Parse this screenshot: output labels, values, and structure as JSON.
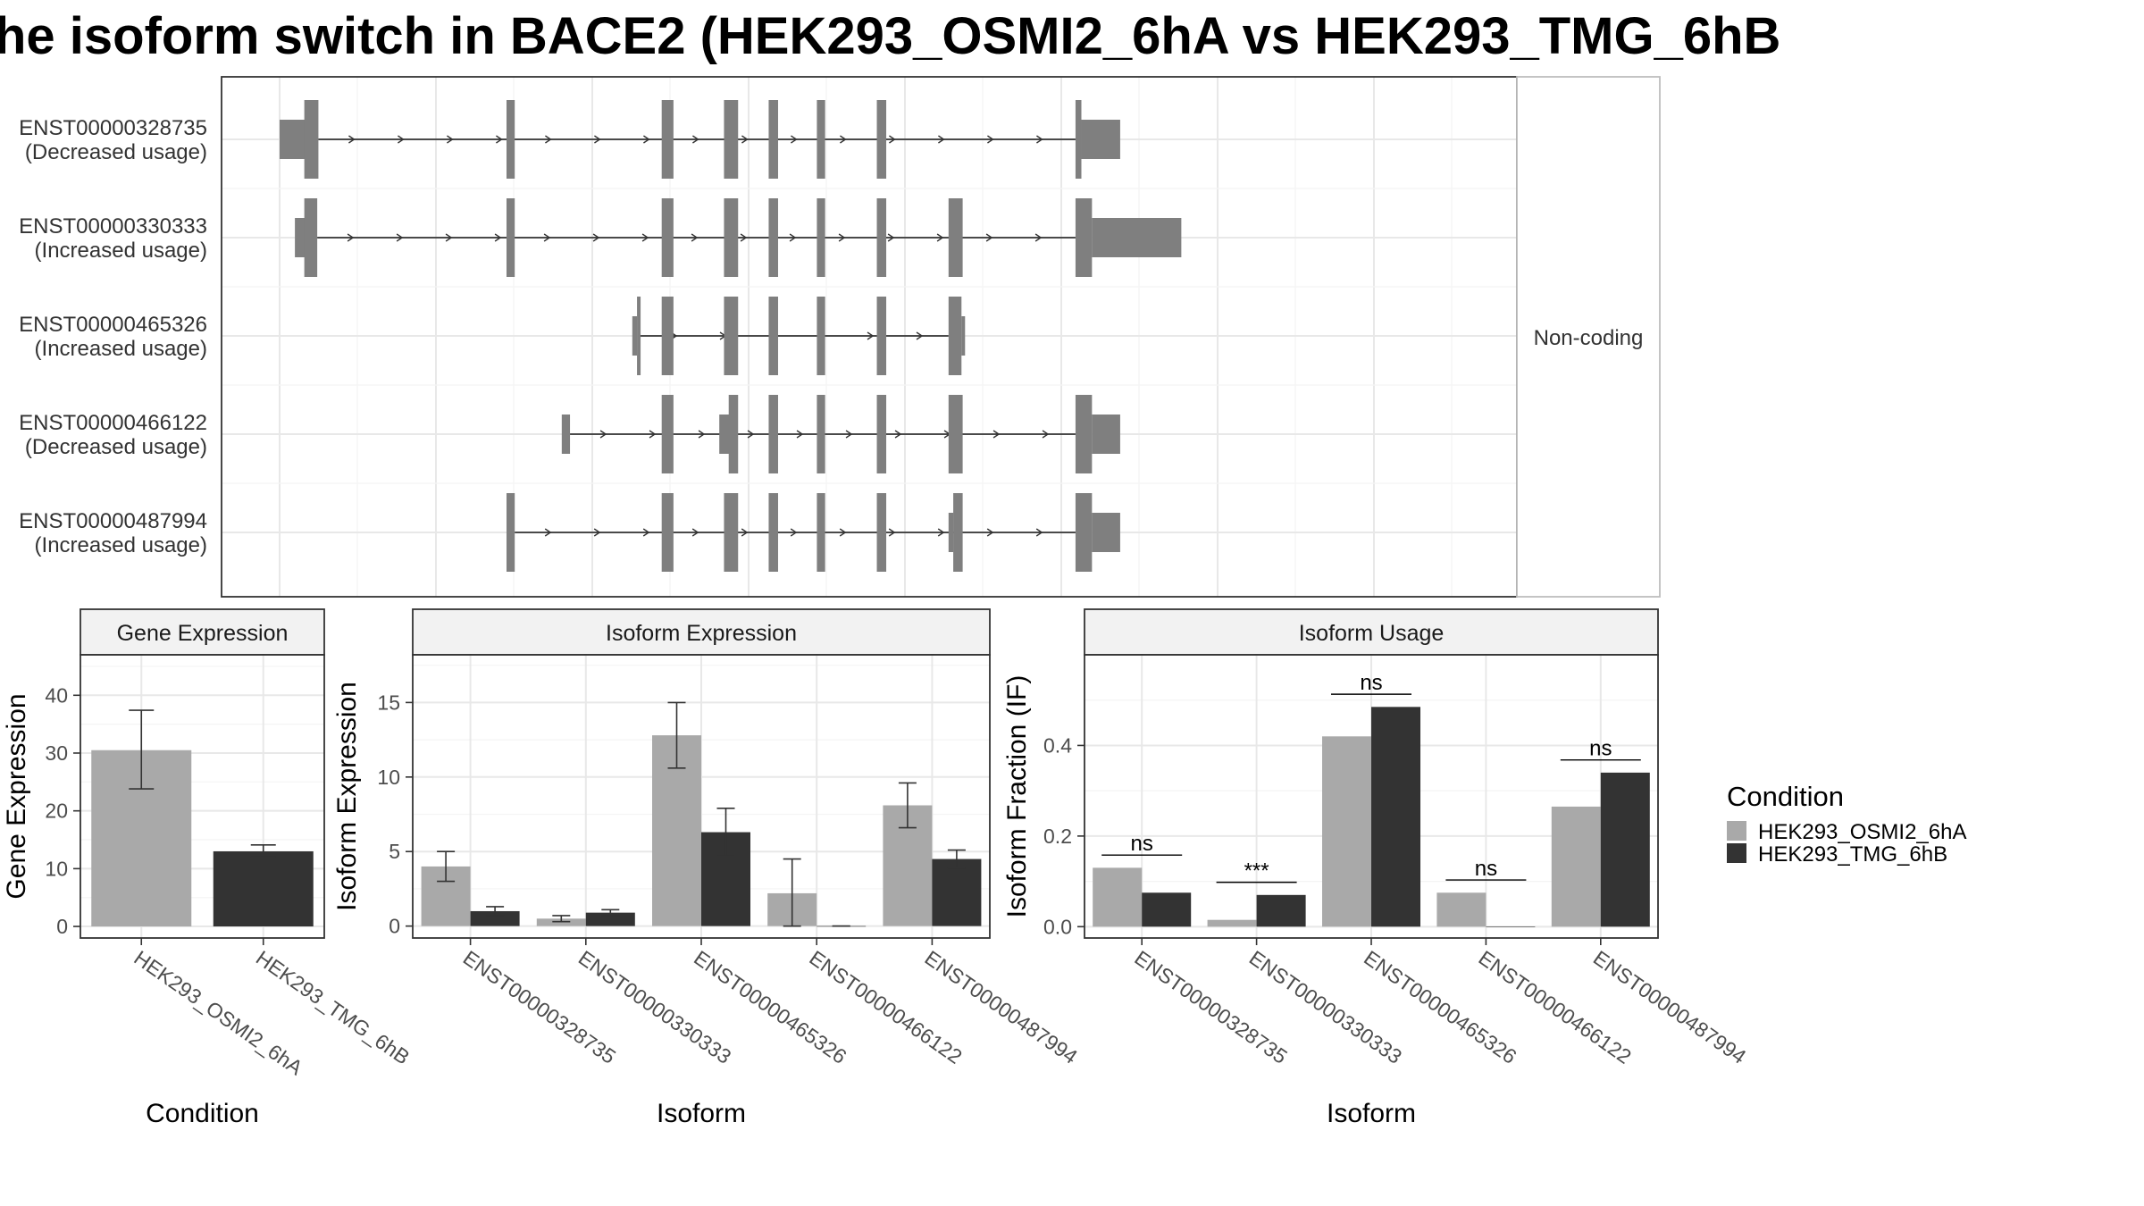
{
  "title": "he isoform switch in BACE2 (HEK293_OSMI2_6hA vs HEK293_TMG_6hB",
  "colors": {
    "cond_a": "#a9a9a9",
    "cond_b": "#333333",
    "exon": "#7f7f7f"
  },
  "transcripts": {
    "strip_label": "Non-coding",
    "coord_range": [
      0,
      100
    ],
    "items": [
      {
        "id": "ENST00000328735",
        "usage": "(Decreased usage)",
        "exons": [
          [
            0,
            3.0,
            "thin"
          ],
          [
            2.1,
            3.3,
            "thick"
          ],
          [
            19.3,
            20.0,
            "thick"
          ],
          [
            32.5,
            33.5,
            "thick"
          ],
          [
            37.8,
            39.0,
            "thick"
          ],
          [
            41.6,
            42.4,
            "thick"
          ],
          [
            45.7,
            46.4,
            "thick"
          ],
          [
            50.8,
            51.6,
            "thick"
          ],
          [
            67.7,
            68.2,
            "thick"
          ],
          [
            68.2,
            71.5,
            "thin"
          ]
        ],
        "intron": [
          3.3,
          67.7
        ]
      },
      {
        "id": "ENST00000330333",
        "usage": "(Increased usage)",
        "exons": [
          [
            1.3,
            2.2,
            "thin"
          ],
          [
            2.1,
            3.2,
            "thick"
          ],
          [
            19.3,
            20.0,
            "thick"
          ],
          [
            32.5,
            33.5,
            "thick"
          ],
          [
            37.8,
            39.0,
            "thick"
          ],
          [
            41.6,
            42.4,
            "thick"
          ],
          [
            45.7,
            46.4,
            "thick"
          ],
          [
            50.8,
            51.6,
            "thick"
          ],
          [
            56.9,
            58.1,
            "thick"
          ],
          [
            67.7,
            69.1,
            "thick"
          ],
          [
            69.1,
            76.7,
            "thin"
          ]
        ],
        "intron": [
          3.2,
          67.7
        ]
      },
      {
        "id": "ENST00000465326",
        "usage": "(Increased usage)",
        "exons": [
          [
            30.0,
            30.4,
            "thin"
          ],
          [
            30.4,
            30.7,
            "thick"
          ],
          [
            32.5,
            33.5,
            "thick"
          ],
          [
            37.8,
            39.0,
            "thick"
          ],
          [
            41.6,
            42.4,
            "thick"
          ],
          [
            45.7,
            46.4,
            "thick"
          ],
          [
            50.8,
            51.6,
            "thick"
          ],
          [
            56.9,
            58.0,
            "thick"
          ],
          [
            58.0,
            58.2,
            "thin"
          ]
        ],
        "intron": [
          30.7,
          56.9
        ]
      },
      {
        "id": "ENST00000466122",
        "usage": "(Decreased usage)",
        "exons": [
          [
            24.0,
            24.7,
            "thin"
          ],
          [
            32.5,
            33.5,
            "thick"
          ],
          [
            37.4,
            38.3,
            "thin"
          ],
          [
            38.2,
            39.0,
            "thick"
          ],
          [
            41.6,
            42.4,
            "thick"
          ],
          [
            45.7,
            46.4,
            "thick"
          ],
          [
            50.8,
            51.6,
            "thick"
          ],
          [
            56.9,
            58.1,
            "thick"
          ],
          [
            67.7,
            69.1,
            "thick"
          ],
          [
            69.1,
            71.5,
            "thin"
          ]
        ],
        "intron": [
          24.7,
          67.7
        ]
      },
      {
        "id": "ENST00000487994",
        "usage": "(Increased usage)",
        "exons": [
          [
            19.3,
            20.0,
            "thick"
          ],
          [
            32.5,
            33.5,
            "thick"
          ],
          [
            37.8,
            39.0,
            "thick"
          ],
          [
            41.6,
            42.4,
            "thick"
          ],
          [
            45.7,
            46.4,
            "thick"
          ],
          [
            50.8,
            51.6,
            "thick"
          ],
          [
            56.9,
            57.3,
            "thin"
          ],
          [
            57.3,
            58.1,
            "thick"
          ],
          [
            67.7,
            69.1,
            "thick"
          ],
          [
            69.1,
            71.5,
            "thin"
          ]
        ],
        "intron": [
          20.0,
          67.7
        ]
      }
    ]
  },
  "legend": {
    "title": "Condition",
    "items": [
      "HEK293_OSMI2_6hA",
      "HEK293_TMG_6hB"
    ]
  },
  "chart_data": [
    {
      "type": "bar",
      "strip": "Gene Expression",
      "xlabel": "Condition",
      "ylabel": "Gene Expression",
      "ylim": [
        -2,
        47
      ],
      "yticks": [
        0,
        10,
        20,
        30,
        40
      ],
      "categories": [
        "HEK293_OSMI2_6hA",
        "HEK293_TMG_6hB"
      ],
      "series": [
        {
          "name": "HEK293_OSMI2_6hA",
          "values": [
            30.5,
            null
          ],
          "err_low": [
            23.8,
            null
          ],
          "err_high": [
            37.4,
            null
          ]
        },
        {
          "name": "HEK293_TMG_6hB",
          "values": [
            null,
            13.0
          ],
          "err_low": [
            null,
            12.0
          ],
          "err_high": [
            null,
            14.1
          ]
        }
      ]
    },
    {
      "type": "bar",
      "strip": "Isoform Expression",
      "xlabel": "Isoform",
      "ylabel": "Isoform Expression",
      "ylim": [
        -0.8,
        18.2
      ],
      "yticks": [
        0,
        5,
        10,
        15
      ],
      "categories": [
        "ENST00000328735",
        "ENST00000330333",
        "ENST00000465326",
        "ENST00000466122",
        "ENST00000487994"
      ],
      "series": [
        {
          "name": "HEK293_OSMI2_6hA",
          "values": [
            4.0,
            0.5,
            12.8,
            2.2,
            8.1
          ],
          "err_low": [
            3.0,
            0.3,
            10.6,
            0.0,
            6.6
          ],
          "err_high": [
            5.0,
            0.7,
            15.0,
            4.5,
            9.6
          ]
        },
        {
          "name": "HEK293_TMG_6hB",
          "values": [
            1.0,
            0.9,
            6.3,
            0.0,
            4.5
          ],
          "err_low": [
            0.7,
            0.7,
            4.7,
            0.0,
            3.9
          ],
          "err_high": [
            1.3,
            1.1,
            7.9,
            0.0,
            5.1
          ]
        }
      ]
    },
    {
      "type": "bar",
      "strip": "Isoform Usage",
      "xlabel": "Isoform",
      "ylabel": "Isoform Fraction (IF)",
      "ylim": [
        -0.025,
        0.6
      ],
      "yticks": [
        0.0,
        0.2,
        0.4
      ],
      "ytick_labels": [
        "0.0",
        "0.2",
        "0.4"
      ],
      "categories": [
        "ENST00000328735",
        "ENST00000330333",
        "ENST00000465326",
        "ENST00000466122",
        "ENST00000487994"
      ],
      "series": [
        {
          "name": "HEK293_OSMI2_6hA",
          "values": [
            0.13,
            0.015,
            0.42,
            0.075,
            0.265
          ]
        },
        {
          "name": "HEK293_TMG_6hB",
          "values": [
            0.075,
            0.07,
            0.485,
            0.0,
            0.34
          ]
        }
      ],
      "significance": [
        {
          "label": "ns",
          "y": 0.158
        },
        {
          "label": "***",
          "y": 0.098
        },
        {
          "label": "ns",
          "y": 0.513
        },
        {
          "label": "ns",
          "y": 0.103
        },
        {
          "label": "ns",
          "y": 0.368
        }
      ]
    }
  ]
}
